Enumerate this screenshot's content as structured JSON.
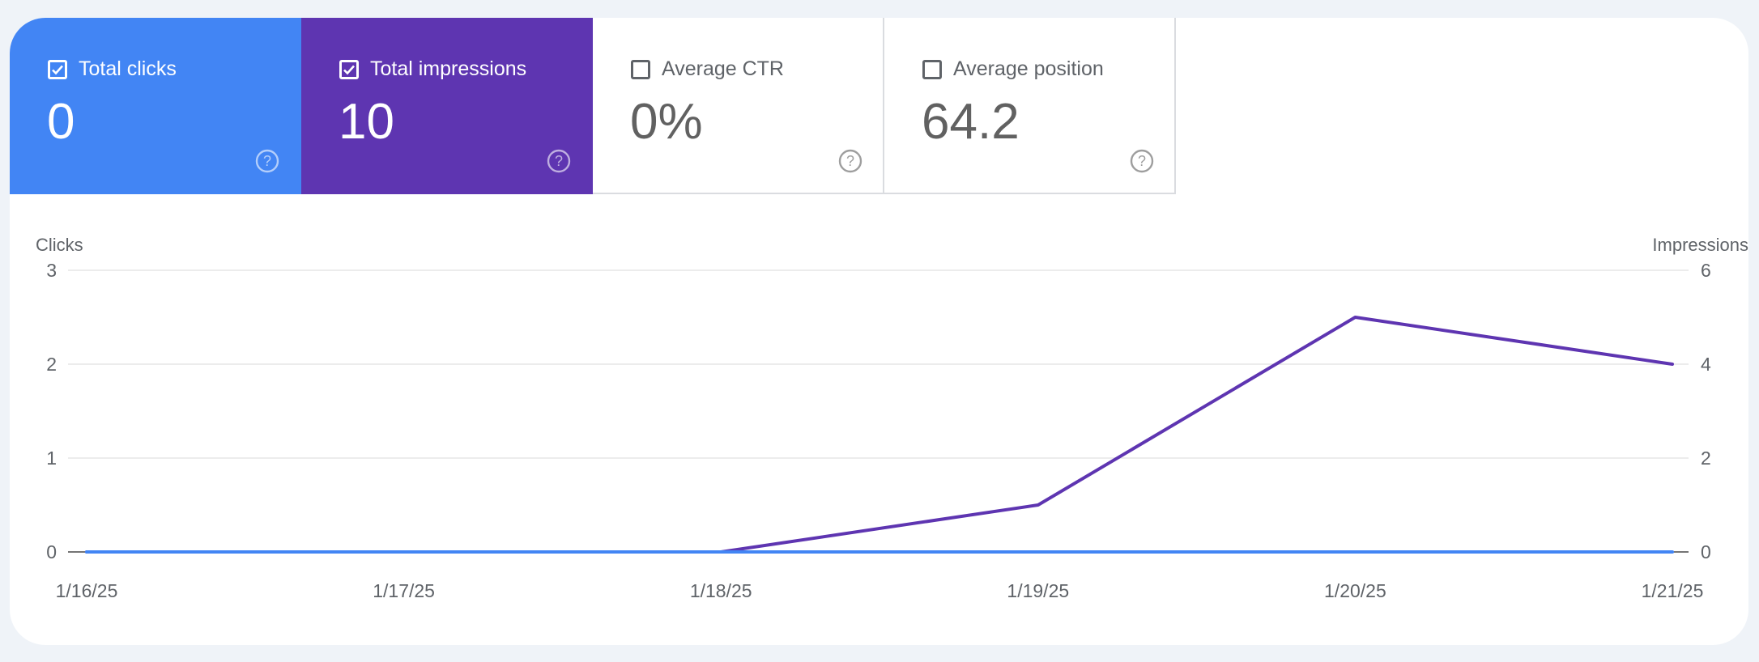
{
  "metrics": [
    {
      "key": "clicks",
      "label": "Total clicks",
      "value": "0",
      "checked": true,
      "color": "#4285f4"
    },
    {
      "key": "impr",
      "label": "Total impressions",
      "value": "10",
      "checked": true,
      "color": "#5e35b1"
    },
    {
      "key": "ctr",
      "label": "Average CTR",
      "value": "0%",
      "checked": false
    },
    {
      "key": "pos",
      "label": "Average position",
      "value": "64.2",
      "checked": false
    }
  ],
  "chart_data": {
    "type": "line",
    "x": [
      "1/16/25",
      "1/17/25",
      "1/18/25",
      "1/19/25",
      "1/20/25",
      "1/21/25"
    ],
    "ylabel": "Clicks",
    "ylabel_right": "Impressions",
    "ylim": [
      0,
      3
    ],
    "ylim_right": [
      0,
      6
    ],
    "yticks": [
      "0",
      "1",
      "2",
      "3"
    ],
    "yticks_right": [
      "0",
      "2",
      "4",
      "6"
    ],
    "grid": true,
    "series": [
      {
        "axis": "left",
        "color": "#4285f4",
        "values": [
          0,
          0,
          0,
          0,
          0,
          0
        ]
      },
      {
        "axis": "right",
        "color": "#5e35b1",
        "values": [
          0,
          0,
          0,
          1,
          5,
          4
        ]
      }
    ]
  }
}
